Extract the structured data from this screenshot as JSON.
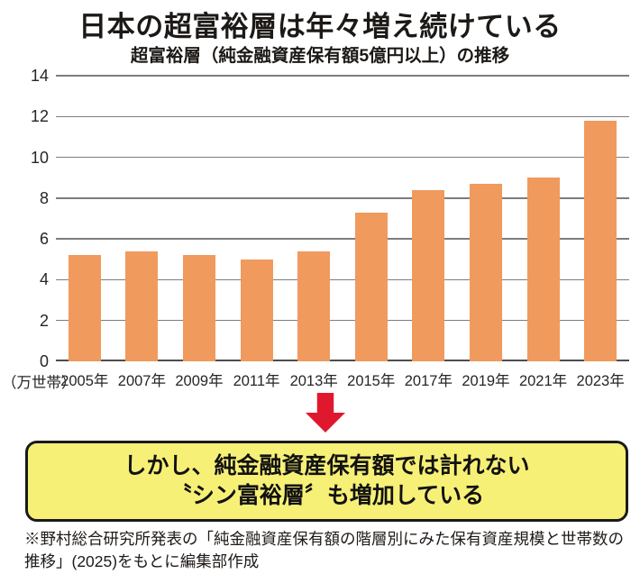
{
  "header": {
    "title": "日本の超富裕層は年々増え続けている",
    "subtitle": "超富裕層（純金融資産保有額5億円以上）の推移"
  },
  "chart_data": {
    "type": "bar",
    "title": "日本の超富裕層は年々増え続けている",
    "subtitle": "超富裕層（純金融資産保有額5億円以上）の推移",
    "categories": [
      "2005年",
      "2007年",
      "2009年",
      "2011年",
      "2013年",
      "2015年",
      "2017年",
      "2019年",
      "2021年",
      "2023年"
    ],
    "values": [
      5.2,
      5.4,
      5.2,
      5.0,
      5.4,
      7.3,
      8.4,
      8.7,
      9.0,
      11.8
    ],
    "unit_label": "（万世帯）",
    "xlabel": "",
    "ylabel": "万世帯",
    "ylim": [
      0,
      14
    ],
    "yticks": [
      0,
      2,
      4,
      6,
      8,
      10,
      12,
      14
    ],
    "grid": true,
    "legend": "none",
    "bar_color": "#F09A5E"
  },
  "arrow": {
    "direction": "down",
    "color": "#E0182D"
  },
  "callout": {
    "line1": "しかし、純金融資産保有額では計れない",
    "line2": "〝シン富裕層〞も増加している",
    "background": "#F7F077",
    "border_color": "#1A1A1A"
  },
  "footnote": {
    "text": "※野村総合研究所発表の「純金融資産保有額の階層別にみた保有資産規模と世帯数の推移」(2025)をもとに編集部作成"
  },
  "colors": {
    "bar": "#F09A5E",
    "gridline": "#7D7D7D",
    "axis_line": "#4F4D4D",
    "arrow_red": "#E0182D",
    "callout_yellow": "#F7F077",
    "text_black": "#1C1916"
  }
}
